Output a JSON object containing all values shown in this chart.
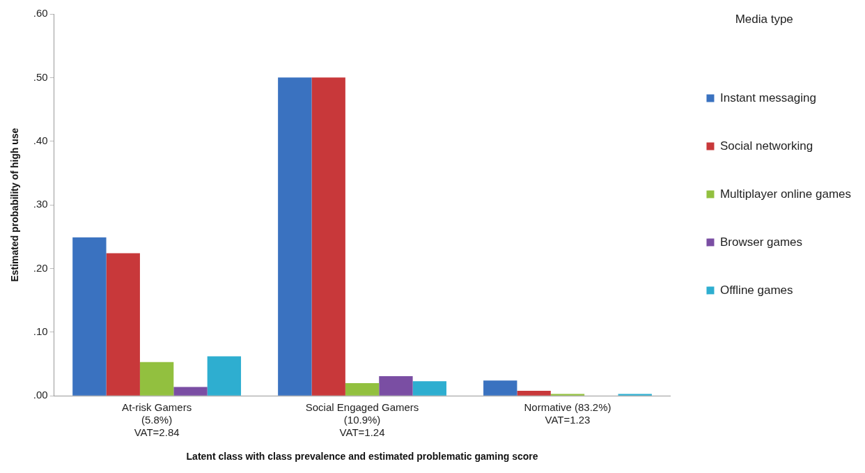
{
  "chart_data": {
    "type": "bar",
    "xlabel": "Latent class with class prevalence and estimated problematic gaming score",
    "ylabel": "Estimated probability of high use",
    "legend_title": "Media type",
    "legend": "right",
    "categories": [
      "At-risk Gamers\n(5.8%)\nVAT=2.84",
      "Social Engaged Gamers\n(10.9%)\nVAT=1.24",
      "Normative (83.2%)\nVAT=1.23"
    ],
    "series": [
      {
        "name": "Instant messaging",
        "color": "#3a72c0",
        "values": [
          0.249,
          0.5,
          0.024
        ]
      },
      {
        "name": "Social networking",
        "color": "#c8383a",
        "values": [
          0.224,
          0.5,
          0.008
        ]
      },
      {
        "name": "Multiplayer online games",
        "color": "#92c03f",
        "values": [
          0.053,
          0.02,
          0.003
        ]
      },
      {
        "name": "Browser games",
        "color": "#7a4ea3",
        "values": [
          0.014,
          0.031,
          0
        ]
      },
      {
        "name": "Offline games",
        "color": "#2eaed0",
        "values": [
          0.062,
          0.023,
          0.003
        ]
      }
    ],
    "ylim": [
      0,
      0.6
    ],
    "yticks": [
      {
        "value": 0,
        "label": ".00"
      },
      {
        "value": 0.1,
        "label": ".10"
      },
      {
        "value": 0.2,
        "label": ".20"
      },
      {
        "value": 0.3,
        "label": ".30"
      },
      {
        "value": 0.4,
        "label": ".40"
      },
      {
        "value": 0.5,
        "label": ".50"
      },
      {
        "value": 0.6,
        "label": ".60"
      }
    ],
    "grid": false
  }
}
